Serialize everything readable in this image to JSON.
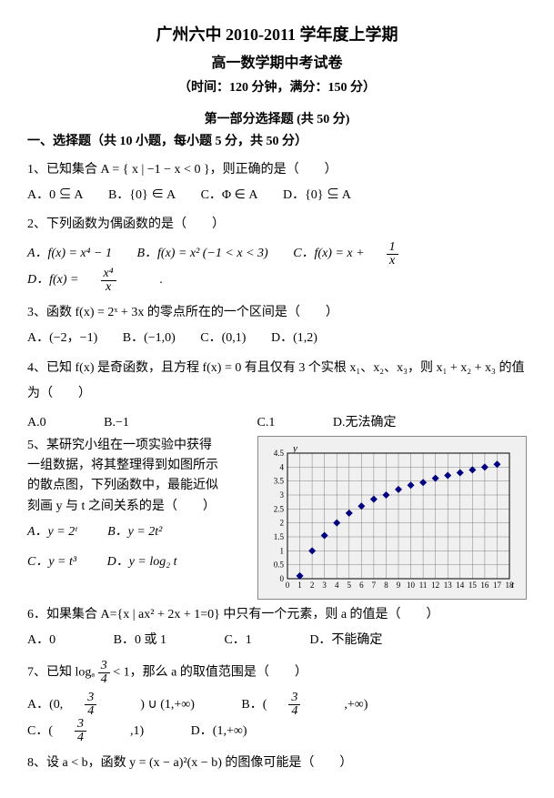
{
  "header": {
    "title1": "广州六中 2010-2011 学年度上学期",
    "title2": "高一数学期中考试卷",
    "subtitle": "（时间：120 分钟，满分：150 分）"
  },
  "section": {
    "part1": "第一部分选择题 (共 50 分)",
    "s1": "一、选择题（共 10 小题，每小题 5 分，共 50 分）"
  },
  "q1": {
    "text": "1、已知集合 A = { x | −1 − x < 0 }，则正确的是（　　）",
    "A": "A．0 ⊆ A",
    "B": "B．{0} ∈ A",
    "C": "C．Φ ∈ A",
    "D": "D．{0} ⊆ A"
  },
  "q2": {
    "text": "2、下列函数为偶函数的是（　　）",
    "A": "A．f(x) = x⁴ − 1",
    "B": "B．f(x) = x² (−1 < x < 3)",
    "C_pre": "C．f(x) = x + ",
    "C_num": "1",
    "C_den": "x",
    "D_pre": "D．f(x) = ",
    "D_num": "x⁴",
    "D_den": "x",
    "D_post": "."
  },
  "q3": {
    "text": "3、函数 f(x) = 2ˣ + 3x 的零点所在的一个区间是（　　）",
    "A": "A．(−2，−1)",
    "B": "B．(−1,0)",
    "C": "C．(0,1)",
    "D": "D．(1,2)"
  },
  "q4": {
    "text": "4、已知 f(x) 是奇函数，且方程 f(x) = 0 有且仅有 3 个实根 x₁、x₂、x₃，则 x₁ + x₂ + x₃ 的值",
    "text2": "为（　　）",
    "A": "A.0",
    "B": "B.−1",
    "C": "C.1",
    "D": "D.无法确定"
  },
  "q5": {
    "text1": "5、某研究小组在一项实验中获得",
    "text2": "一组数据，将其整理得到如图所示",
    "text3": "的散点图，下列函数中，最能近似",
    "text4": "刻画 y 与 t 之间关系的是（　　）",
    "A": "A．y = 2ᵗ",
    "B": "B．y = 2t²",
    "C": "C．y = t³",
    "D": "D．y = log₂ t",
    "chart": {
      "type": "scatter",
      "x_label": "t",
      "y_label": "y",
      "xlim": [
        0,
        18
      ],
      "ylim": [
        0,
        4.5
      ],
      "xticks": [
        0,
        1,
        2,
        3,
        4,
        5,
        6,
        7,
        8,
        9,
        10,
        11,
        12,
        13,
        14,
        15,
        16,
        17,
        18
      ],
      "yticks": [
        0,
        0.5,
        1,
        1.5,
        2,
        2.5,
        3,
        3.5,
        4,
        4.5
      ],
      "grid_color": "#808080",
      "background": "#f0f0f0",
      "point_color": "#000080",
      "point_size": 4,
      "tick_fontsize": 9,
      "label_fontsize": 11,
      "points": [
        [
          1,
          0.1
        ],
        [
          2,
          1.0
        ],
        [
          3,
          1.55
        ],
        [
          4,
          2.0
        ],
        [
          5,
          2.35
        ],
        [
          6,
          2.6
        ],
        [
          7,
          2.85
        ],
        [
          8,
          3.0
        ],
        [
          9,
          3.2
        ],
        [
          10,
          3.35
        ],
        [
          11,
          3.45
        ],
        [
          12,
          3.6
        ],
        [
          13,
          3.7
        ],
        [
          14,
          3.8
        ],
        [
          15,
          3.9
        ],
        [
          16,
          4.0
        ],
        [
          17,
          4.1
        ]
      ]
    }
  },
  "q6": {
    "text": "6．如果集合 A={x | ax² + 2x + 1=0} 中只有一个元素，则 a 的值是（　　）",
    "A": "A．0",
    "B": "B．0 或 1",
    "C": "C．1",
    "D": "D．不能确定"
  },
  "q7": {
    "pre": "7、已知 logₐ ",
    "num": "3",
    "den": "4",
    "post": " < 1，那么 a 的取值范围是（　　）",
    "A_pre": "A．(0, ",
    "A_num": "3",
    "A_den": "4",
    "A_post": ") ∪ (1,+∞)",
    "B_pre": "B．( ",
    "B_num": "3",
    "B_den": "4",
    "B_post": " ,+∞)",
    "C_pre": "C．( ",
    "C_num": "3",
    "C_den": "4",
    "C_post": " ,1)",
    "D": "D．(1,+∞)"
  },
  "q8": {
    "text": "8、设 a < b，函数 y = (x − a)²(x − b) 的图像可能是（　　）"
  }
}
